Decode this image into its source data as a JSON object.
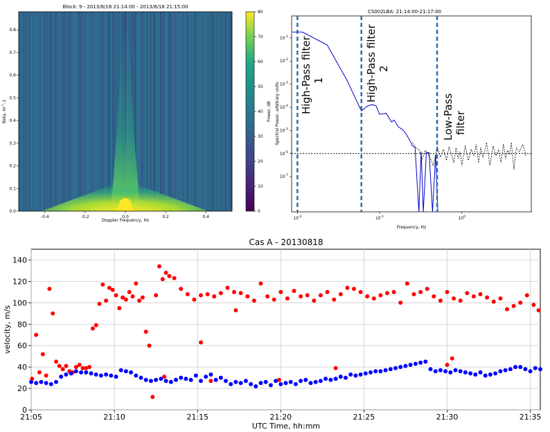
{
  "chart_data": [
    {
      "type": "heatmap",
      "title": "Block: 9 - 2013/8/18 21:14:00 - 2013/8/18 21:15:00",
      "xlabel": "Doppler Frequency, Hz",
      "ylabel": "Beta, m^-1",
      "xlim": [
        -0.53,
        0.53
      ],
      "ylim": [
        0,
        0.88
      ],
      "xticks": [
        "-0.4",
        "-0.2",
        "0.0",
        "0.2",
        "0.4"
      ],
      "xtick_values": [
        -0.4,
        -0.2,
        0.0,
        0.2,
        0.4
      ],
      "yticks": [
        "0.0",
        "0.1",
        "0.2",
        "0.3",
        "0.4",
        "0.5",
        "0.6",
        "0.7",
        "0.8"
      ],
      "ytick_values": [
        0,
        0.1,
        0.2,
        0.3,
        0.4,
        0.5,
        0.6,
        0.7,
        0.8
      ],
      "colorbar": {
        "label": "Power, dB",
        "range": [
          0,
          80
        ],
        "ticks": [
          "0",
          "10",
          "20",
          "30",
          "40",
          "50",
          "60",
          "70",
          "80"
        ],
        "tick_values": [
          0,
          10,
          20,
          30,
          40,
          50,
          60,
          70,
          80
        ],
        "colormap": "viridis"
      }
    },
    {
      "type": "line",
      "title": "CS002LBA: 21:14:00-21:17:00",
      "xlabel": "Frequency, Hz",
      "ylabel": "Spectral Power, arbitrary units",
      "xscale": "log",
      "yscale": "log",
      "xlim": [
        0.0085,
        7
      ],
      "ylim": [
        3e-09,
        0.9
      ],
      "xticks": [
        "10^-2",
        "10^-1",
        "10^0"
      ],
      "xtick_values": [
        0.01,
        0.1,
        1
      ],
      "yticks": [
        "10^-7",
        "10^-6",
        "10^-5",
        "10^-4",
        "10^-3",
        "10^-2",
        "10^-1"
      ],
      "ytick_values": [
        1e-07,
        1e-06,
        1e-05,
        0.0001,
        0.001,
        0.01,
        0.1
      ],
      "annotations": [
        {
          "text_line1": "High-Pass filter",
          "text_line2": "1",
          "x": 0.01
        },
        {
          "text_line1": "High-Pass filter",
          "text_line2": "2",
          "x": 0.06
        },
        {
          "text_line1": "Low-Pass",
          "text_line2": "filter",
          "x": 0.5
        }
      ],
      "vlines": [
        0.01,
        0.06,
        0.5
      ],
      "hline": 1e-06,
      "series": [
        {
          "color": "#0000cc",
          "style": "solid",
          "x": [
            0.0087,
            0.0115,
            0.023,
            0.04,
            0.06,
            0.063,
            0.07,
            0.08,
            0.09,
            0.1,
            0.12,
            0.14,
            0.15,
            0.17,
            0.19,
            0.21,
            0.23,
            0.25,
            0.27,
            0.3,
            0.32,
            0.34,
            0.37,
            0.4,
            0.44,
            0.48,
            0.51
          ],
          "y": [
            0.18,
            0.18,
            0.05,
            0.0015,
            7e-05,
            8e-05,
            0.00011,
            0.00013,
            0.00012,
            5e-05,
            5.5e-05,
            2.3e-05,
            2.8e-05,
            1.4e-05,
            1.1e-05,
            7e-06,
            4e-06,
            2.2e-06,
            1.8e-06,
            3e-09,
            1.2e-06,
            3e-09,
            1.1e-06,
            1.1e-06,
            3e-09,
            9e-07,
            3e-09
          ]
        },
        {
          "color": "#000000",
          "style": "dashed",
          "x": [
            0.25,
            0.28,
            0.3,
            0.33,
            0.36,
            0.4,
            0.45,
            0.5,
            0.55,
            0.6,
            0.65,
            0.7,
            0.75,
            0.8,
            0.85,
            0.9,
            0.95,
            1.0,
            1.1,
            1.2,
            1.3,
            1.4,
            1.5,
            1.6,
            1.7,
            1.8,
            1.9,
            2.0,
            2.2,
            2.4,
            2.6,
            2.8,
            3.0,
            3.2,
            3.4,
            3.6,
            3.8,
            4.0,
            4.3,
            4.6,
            5.0,
            5.5,
            6.0
          ],
          "y": [
            3e-06,
            1.7e-06,
            1.5e-06,
            6e-07,
            1.4e-06,
            8e-07,
            3e-07,
            2e-06,
            7e-07,
            1.5e-06,
            5e-07,
            2e-06,
            9e-07,
            4e-07,
            1.8e-06,
            6e-07,
            1.2e-06,
            3e-07,
            2.2e-06,
            5e-07,
            1.5e-06,
            8e-07,
            2.5e-06,
            4e-07,
            1.9e-06,
            7e-07,
            1.2e-06,
            3e-06,
            3e-07,
            2.1e-06,
            8e-07,
            1.5e-06,
            4e-07,
            2.6e-06,
            6e-07,
            1.4e-06,
            9e-07,
            3e-06,
            2e-07,
            1.8e-06,
            1.2e-06,
            2.5e-06,
            8e-07
          ]
        }
      ]
    },
    {
      "type": "scatter",
      "title": "Cas A - 20130818",
      "xlabel": "UTC Time, hh:mm",
      "ylabel": "velocity, m/s",
      "xlim_minutes": [
        0,
        30.6
      ],
      "ylim": [
        0,
        150
      ],
      "xticks": [
        "21:05",
        "21:10",
        "21:15",
        "21:20",
        "21:25",
        "21:30",
        "21:35"
      ],
      "xtick_minutes": [
        0,
        5,
        10,
        15,
        20,
        25,
        30
      ],
      "yticks": [
        "0",
        "20",
        "40",
        "60",
        "80",
        "100",
        "120",
        "140"
      ],
      "ytick_values": [
        0,
        20,
        40,
        60,
        80,
        100,
        120,
        140
      ],
      "grid": true,
      "series": [
        {
          "color": "#ff0000",
          "x_minutes": [
            0.05,
            0.3,
            0.5,
            0.7,
            0.9,
            1.1,
            1.3,
            1.5,
            1.7,
            1.9,
            2.1,
            2.3,
            2.5,
            2.7,
            2.9,
            3.1,
            3.3,
            3.5,
            3.7,
            3.9,
            4.1,
            4.3,
            4.5,
            4.7,
            4.9,
            5.1,
            5.3,
            5.5,
            5.7,
            5.9,
            6.1,
            6.3,
            6.5,
            6.7,
            6.9,
            7.1,
            7.3,
            7.5,
            7.7,
            7.9,
            8.1,
            8.3,
            8.6,
            9,
            9.4,
            9.8,
            10.2,
            10.6,
            11,
            11.4,
            11.8,
            12.2,
            12.6,
            13,
            13.4,
            13.8,
            14.2,
            14.6,
            15,
            15.4,
            15.8,
            16.2,
            16.6,
            17,
            17.4,
            17.8,
            18.2,
            18.6,
            19,
            19.4,
            19.8,
            20.2,
            20.6,
            21,
            21.4,
            21.8,
            22.2,
            22.6,
            23,
            23.4,
            23.8,
            24.2,
            24.6,
            25,
            25.4,
            25.8,
            26.2,
            26.6,
            27,
            27.4,
            27.8,
            28.2,
            28.6,
            29,
            29.4,
            29.8,
            30.2,
            30.5,
            8.0,
            10.8,
            10.2,
            14.9,
            12.3,
            18.3,
            25.0,
            25.3
          ],
          "y": [
            29,
            70,
            35,
            52,
            32,
            113,
            90,
            45,
            41,
            38,
            41,
            36,
            35,
            40,
            42,
            39,
            39,
            40,
            76,
            79,
            99,
            117,
            102,
            114,
            112,
            107,
            95,
            105,
            103,
            110,
            106,
            118,
            102,
            105,
            73,
            60,
            12,
            107,
            134,
            122,
            128,
            125,
            123,
            113,
            108,
            103,
            107,
            108,
            106,
            109,
            114,
            110,
            109,
            106,
            102,
            118,
            106,
            103,
            110,
            104,
            111,
            106,
            107,
            102,
            107,
            110,
            103,
            108,
            114,
            113,
            110,
            106,
            104,
            107,
            109,
            110,
            100,
            118,
            108,
            110,
            113,
            106,
            102,
            110,
            104,
            102,
            109,
            106,
            108,
            105,
            101,
            104,
            94,
            97,
            100,
            107,
            98,
            93,
            31,
            27,
            63,
            28,
            93,
            39,
            42,
            48
          ]
        },
        {
          "color": "#0000ff",
          "x_minutes": [
            0,
            0.3,
            0.6,
            0.9,
            1.2,
            1.5,
            1.8,
            2.1,
            2.4,
            2.7,
            3.0,
            3.3,
            3.6,
            3.9,
            4.2,
            4.5,
            4.8,
            5.1,
            5.4,
            5.7,
            6.0,
            6.3,
            6.6,
            6.9,
            7.2,
            7.5,
            7.8,
            8.1,
            8.4,
            8.7,
            9.0,
            9.3,
            9.6,
            9.9,
            10.2,
            10.5,
            10.8,
            11.1,
            11.4,
            11.7,
            12.0,
            12.3,
            12.6,
            12.9,
            13.2,
            13.5,
            13.8,
            14.1,
            14.4,
            14.7,
            15.0,
            15.3,
            15.6,
            15.9,
            16.2,
            16.5,
            16.8,
            17.1,
            17.4,
            17.7,
            18.0,
            18.3,
            18.6,
            18.9,
            19.2,
            19.5,
            19.8,
            20.1,
            20.4,
            20.7,
            21.0,
            21.3,
            21.6,
            21.9,
            22.2,
            22.5,
            22.8,
            23.1,
            23.4,
            23.7,
            24.0,
            24.3,
            24.6,
            24.9,
            25.2,
            25.5,
            25.8,
            26.1,
            26.4,
            26.7,
            27.0,
            27.3,
            27.6,
            27.9,
            28.2,
            28.5,
            28.8,
            29.1,
            29.4,
            29.7,
            30.0,
            30.3,
            30.6
          ],
          "y": [
            26,
            25,
            26,
            25,
            24,
            26,
            31,
            33,
            34,
            36,
            35,
            35,
            34,
            33,
            32,
            33,
            32,
            31,
            37,
            36,
            35,
            32,
            30,
            28,
            27,
            28,
            29,
            27,
            26,
            28,
            30,
            29,
            28,
            32,
            27,
            31,
            33,
            28,
            30,
            27,
            24,
            26,
            25,
            27,
            24,
            22,
            25,
            26,
            23,
            27,
            24,
            25,
            26,
            24,
            27,
            28,
            25,
            26,
            27,
            29,
            28,
            29,
            31,
            30,
            33,
            32,
            33,
            34,
            35,
            36,
            36,
            37,
            38,
            39,
            40,
            41,
            42,
            43,
            44,
            45,
            38,
            36,
            37,
            36,
            35,
            37,
            36,
            35,
            34,
            33,
            35,
            32,
            33,
            34,
            36,
            37,
            38,
            40,
            40,
            38,
            36,
            39,
            38
          ]
        }
      ]
    }
  ]
}
